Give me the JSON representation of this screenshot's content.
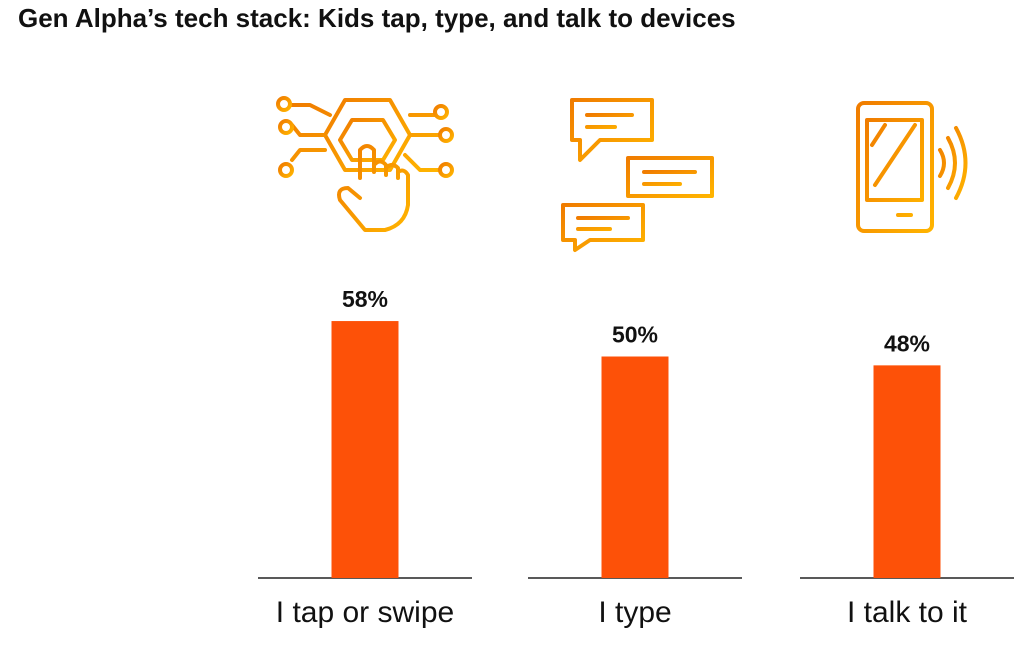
{
  "chart_data": {
    "type": "bar",
    "title": "Gen Alpha’s tech stack: Kids tap, type, and talk to devices",
    "categories": [
      "I tap or swipe",
      "I type",
      "I talk to it"
    ],
    "values": [
      58,
      50,
      48
    ],
    "value_labels": [
      "58%",
      "50%",
      "48%"
    ],
    "color": "#fd5108"
  }
}
